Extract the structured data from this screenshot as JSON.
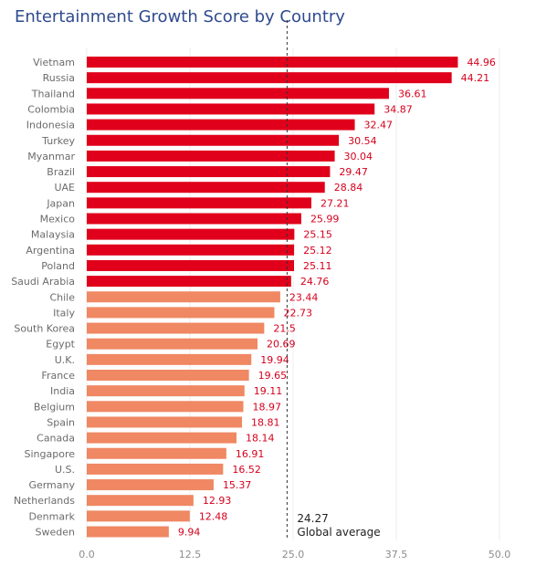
{
  "chart_data": {
    "type": "bar",
    "orientation": "horizontal",
    "title": "Entertainment Growth Score by Country",
    "categories": [
      "Vietnam",
      "Russia",
      "Thailand",
      "Colombia",
      "Indonesia",
      "Turkey",
      "Myanmar",
      "Brazil",
      "UAE",
      "Japan",
      "Mexico",
      "Malaysia",
      "Argentina",
      "Poland",
      "Saudi Arabia",
      "Chile",
      "Italy",
      "South Korea",
      "Egypt",
      "U.K.",
      "France",
      "India",
      "Belgium",
      "Spain",
      "Canada",
      "Singapore",
      "U.S.",
      "Germany",
      "Netherlands",
      "Denmark",
      "Sweden"
    ],
    "values": [
      44.96,
      44.21,
      36.61,
      34.87,
      32.47,
      30.54,
      30.04,
      29.47,
      28.84,
      27.21,
      25.99,
      25.15,
      25.12,
      25.11,
      24.76,
      23.44,
      22.73,
      21.5,
      20.69,
      19.94,
      19.65,
      19.11,
      18.97,
      18.81,
      18.14,
      16.91,
      16.52,
      15.37,
      12.93,
      12.48,
      9.94
    ],
    "value_labels": [
      "44.96",
      "44.21",
      "36.61",
      "34.87",
      "32.47",
      "30.54",
      "30.04",
      "29.47",
      "28.84",
      "27.21",
      "25.99",
      "25.15",
      "25.12",
      "25.11",
      "24.76",
      "23.44",
      "22.73",
      "21.5",
      "20.69",
      "19.94",
      "19.65",
      "19.11",
      "18.97",
      "18.81",
      "18.14",
      "16.91",
      "16.52",
      "15.37",
      "12.93",
      "12.48",
      "9.94"
    ],
    "x_ticks": [
      "0.0",
      "12.5",
      "25.0",
      "37.5",
      "50.0"
    ],
    "xlim": [
      0,
      50
    ],
    "grid": "vertical",
    "reference_line": {
      "value": 24.27,
      "value_label": "24.27",
      "label": "Global average"
    },
    "colors": {
      "above_average": "#e0001b",
      "below_average": "#ef8863",
      "reference_line": "#333333",
      "title": "#2f4a8f"
    }
  }
}
